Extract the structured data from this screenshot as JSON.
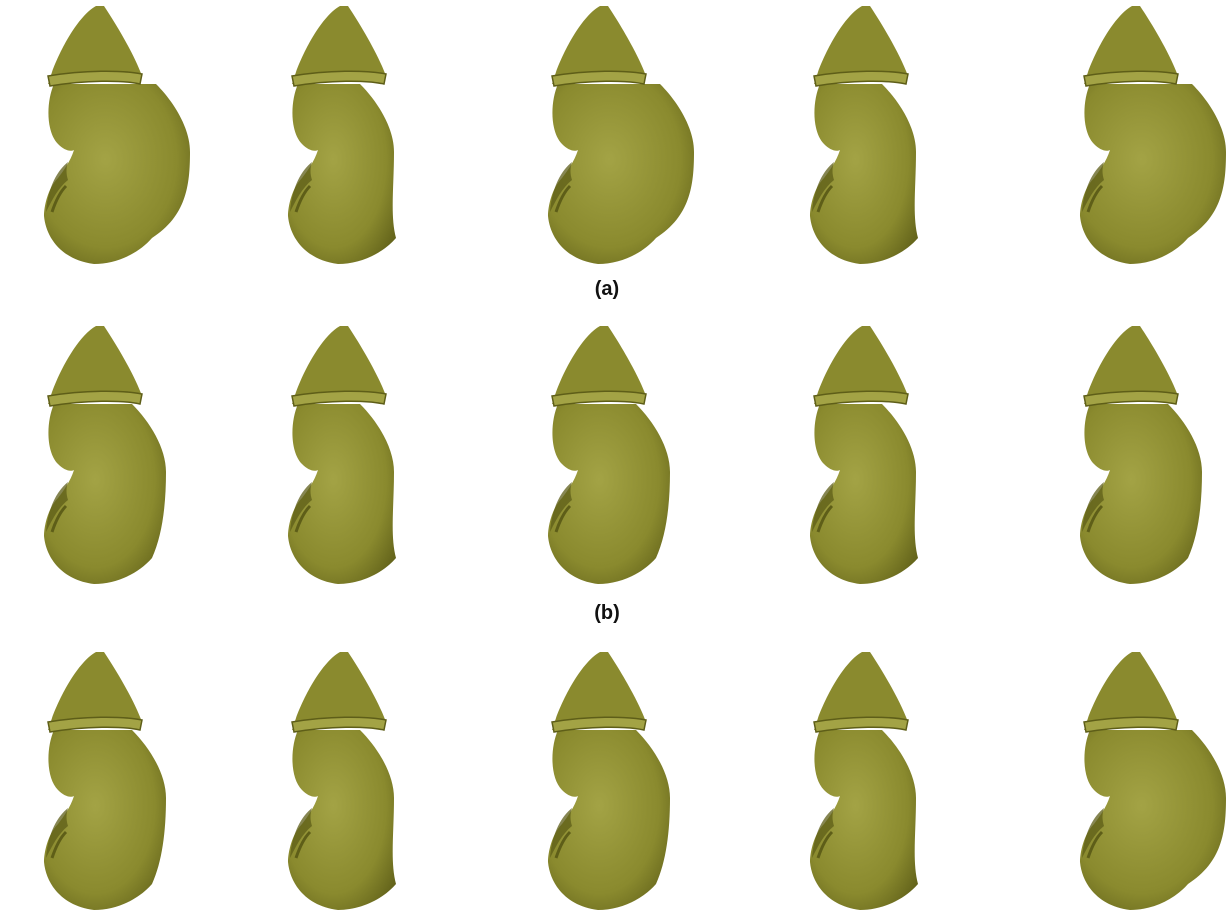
{
  "figure": {
    "shape_name": "kidney-with-cap-shape",
    "colors": {
      "shape_fill": "#8a8a2e",
      "shape_dark": "#5e5e18",
      "shape_light": "#a3a345",
      "background": "#ffffff"
    },
    "rows": [
      {
        "label": "(a)",
        "variants": [
          "wide",
          "narrow",
          "wide",
          "narrow",
          "wide"
        ]
      },
      {
        "label": "(b)",
        "variants": [
          "medium",
          "narrow",
          "medium",
          "narrow",
          "medium"
        ]
      },
      {
        "label": "",
        "variants": [
          "medium",
          "narrow",
          "medium",
          "narrow",
          "wide"
        ]
      }
    ]
  }
}
